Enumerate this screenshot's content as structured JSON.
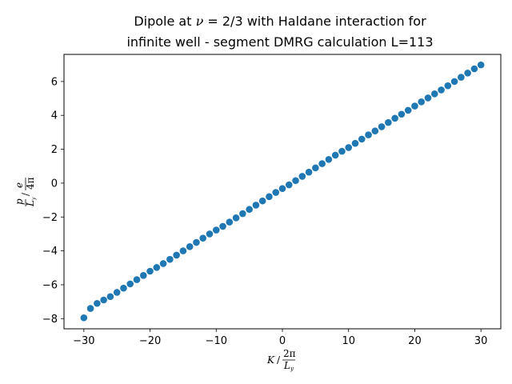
{
  "chart_data": {
    "type": "scatter",
    "title_line1": "Dipole at ν = 2/3 with Haldane interaction for",
    "title_line2": "infinite well - segment DMRG calculation L=113",
    "xlabel": "K / (2π / L_y)",
    "ylabel": "p / L_y / (e / 4π)",
    "xlim": [
      -33,
      33
    ],
    "ylim": [
      -8.6,
      7.6
    ],
    "xticks": [
      -30,
      -20,
      -10,
      0,
      10,
      20,
      30
    ],
    "yticks": [
      -8,
      -6,
      -4,
      -2,
      0,
      2,
      4,
      6
    ],
    "xtick_labels": [
      "−30",
      "−20",
      "−10",
      "0",
      "10",
      "20",
      "30"
    ],
    "ytick_labels": [
      "−8",
      "−6",
      "−4",
      "−2",
      "0",
      "2",
      "4",
      "6"
    ],
    "grid": false,
    "marker_color": "#1f77b4",
    "x": [
      -30,
      -29,
      -28,
      -27,
      -26,
      -25,
      -24,
      -23,
      -22,
      -21,
      -20,
      -19,
      -18,
      -17,
      -16,
      -15,
      -14,
      -13,
      -12,
      -11,
      -10,
      -9,
      -8,
      -7,
      -6,
      -5,
      -4,
      -3,
      -2,
      -1,
      0,
      1,
      2,
      3,
      4,
      5,
      6,
      7,
      8,
      9,
      10,
      11,
      12,
      13,
      14,
      15,
      16,
      17,
      18,
      19,
      20,
      21,
      22,
      23,
      24,
      25,
      26,
      27,
      28,
      29,
      30
    ],
    "y": [
      -7.95,
      -7.4,
      -7.1,
      -6.9,
      -6.7,
      -6.45,
      -6.2,
      -5.95,
      -5.7,
      -5.45,
      -5.2,
      -4.98,
      -4.75,
      -4.5,
      -4.25,
      -4.0,
      -3.75,
      -3.5,
      -3.25,
      -3.0,
      -2.77,
      -2.55,
      -2.3,
      -2.05,
      -1.8,
      -1.55,
      -1.3,
      -1.05,
      -0.8,
      -0.55,
      -0.32,
      -0.1,
      0.15,
      0.4,
      0.65,
      0.9,
      1.15,
      1.4,
      1.65,
      1.88,
      2.1,
      2.35,
      2.6,
      2.85,
      3.08,
      3.33,
      3.58,
      3.83,
      4.07,
      4.3,
      4.55,
      4.8,
      5.03,
      5.27,
      5.5,
      5.75,
      6.0,
      6.25,
      6.5,
      6.75,
      6.98
    ]
  }
}
